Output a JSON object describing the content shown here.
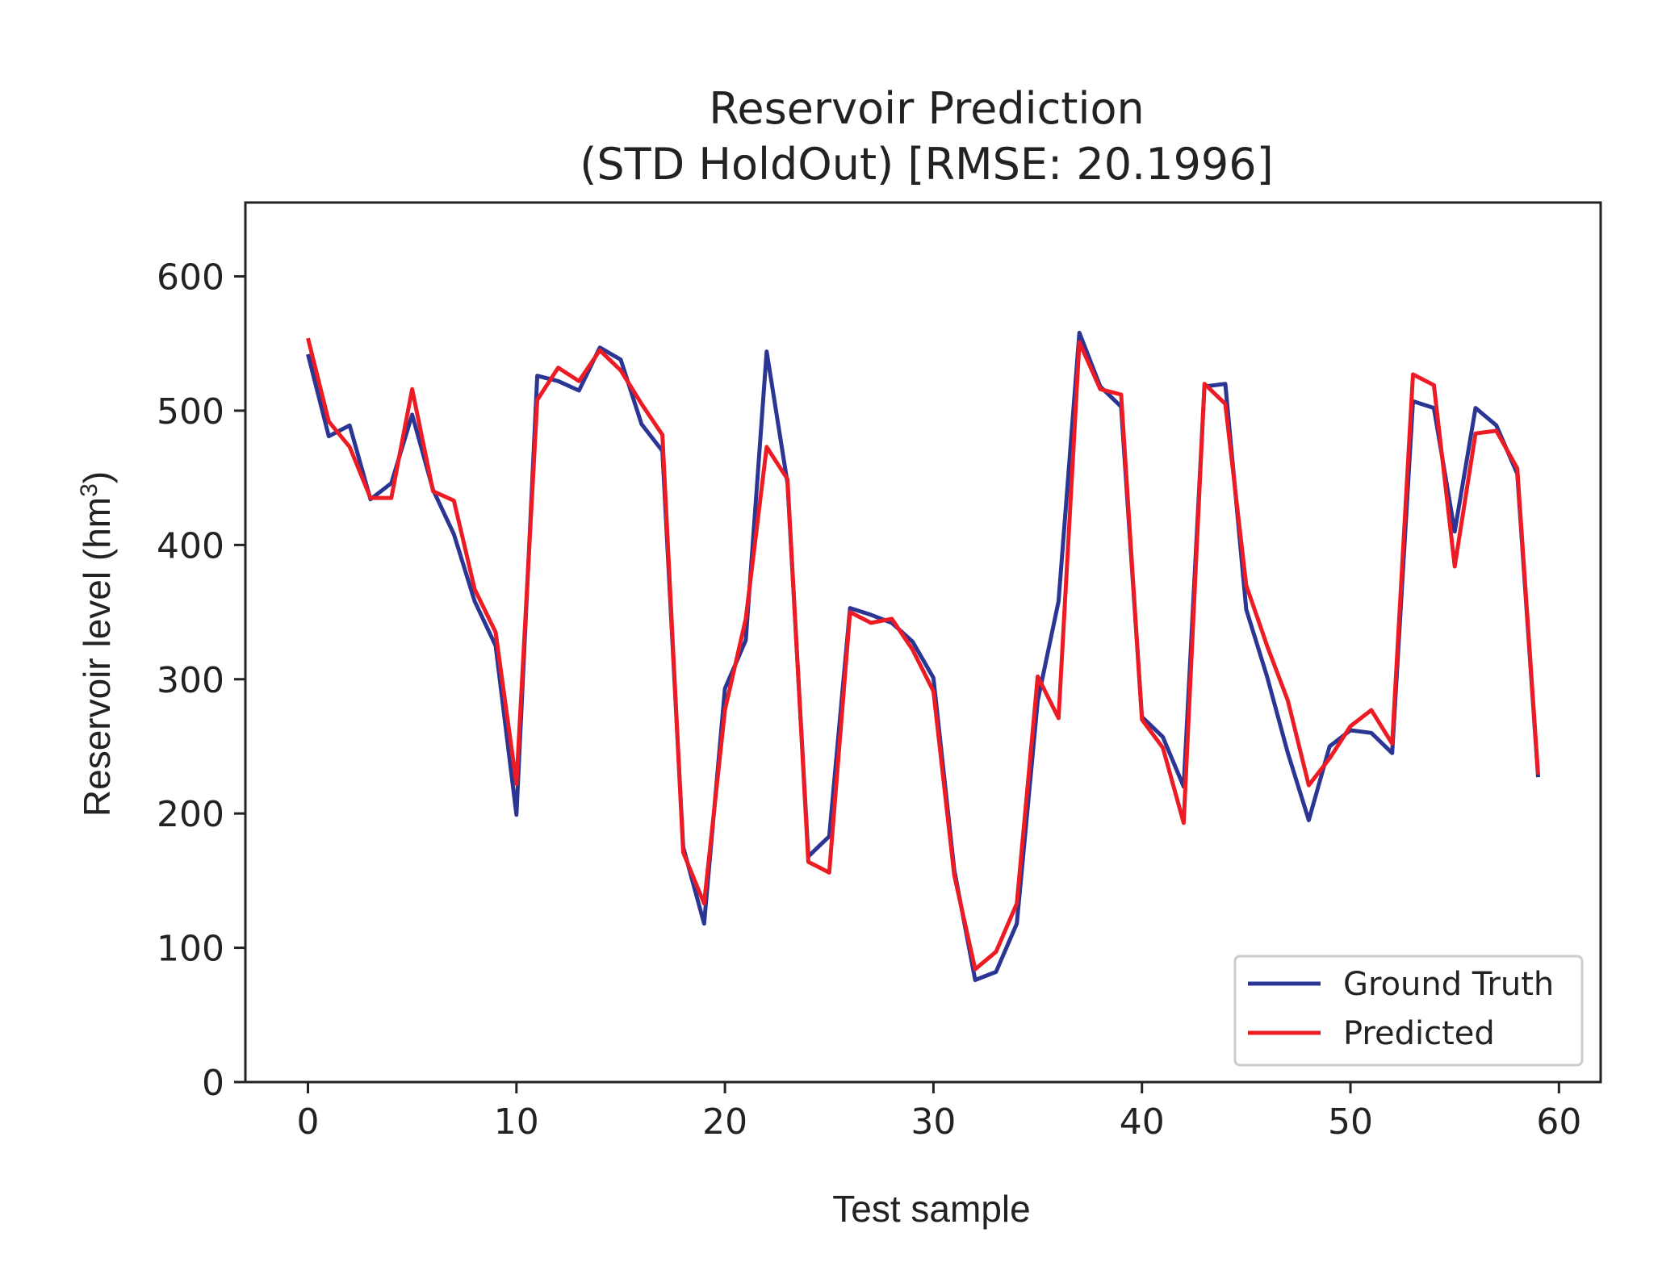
{
  "chart_data": {
    "type": "line",
    "title_line1": "Reservoir Prediction",
    "title_line2": "(STD HoldOut) [RMSE: 20.1996]",
    "xlabel": "Test sample",
    "ylabel_main": "Reservoir level (hm",
    "ylabel_sup": "3",
    "ylabel_end": ")",
    "xlim": [
      -3,
      62
    ],
    "ylim": [
      0,
      655
    ],
    "xticks": [
      0,
      10,
      20,
      30,
      40,
      50,
      60
    ],
    "yticks": [
      0,
      100,
      200,
      300,
      400,
      500,
      600
    ],
    "legend_position": "lower-right",
    "series": [
      {
        "name": "Ground Truth",
        "color": "#2b3594",
        "values": [
          542,
          481,
          489,
          434,
          446,
          497,
          441,
          408,
          358,
          325,
          199,
          526,
          522,
          515,
          547,
          538,
          490,
          470,
          175,
          118,
          293,
          329,
          544,
          446,
          168,
          183,
          353,
          348,
          342,
          328,
          301,
          158,
          76,
          82,
          118,
          284,
          358,
          558,
          518,
          503,
          272,
          257,
          220,
          518,
          520,
          352,
          302,
          245,
          195,
          250,
          262,
          260,
          245,
          507,
          502,
          410,
          502,
          489,
          453,
          227
        ]
      },
      {
        "name": "Predicted",
        "color": "#ed1c24",
        "values": [
          554,
          492,
          473,
          435,
          435,
          516,
          440,
          433,
          367,
          335,
          222,
          508,
          532,
          522,
          545,
          530,
          505,
          482,
          171,
          133,
          277,
          345,
          473,
          449,
          164,
          156,
          350,
          342,
          345,
          322,
          291,
          154,
          84,
          97,
          133,
          302,
          271,
          551,
          516,
          512,
          270,
          249,
          193,
          520,
          505,
          370,
          325,
          284,
          221,
          241,
          265,
          277,
          252,
          527,
          519,
          384,
          483,
          485,
          457,
          229
        ]
      }
    ]
  }
}
